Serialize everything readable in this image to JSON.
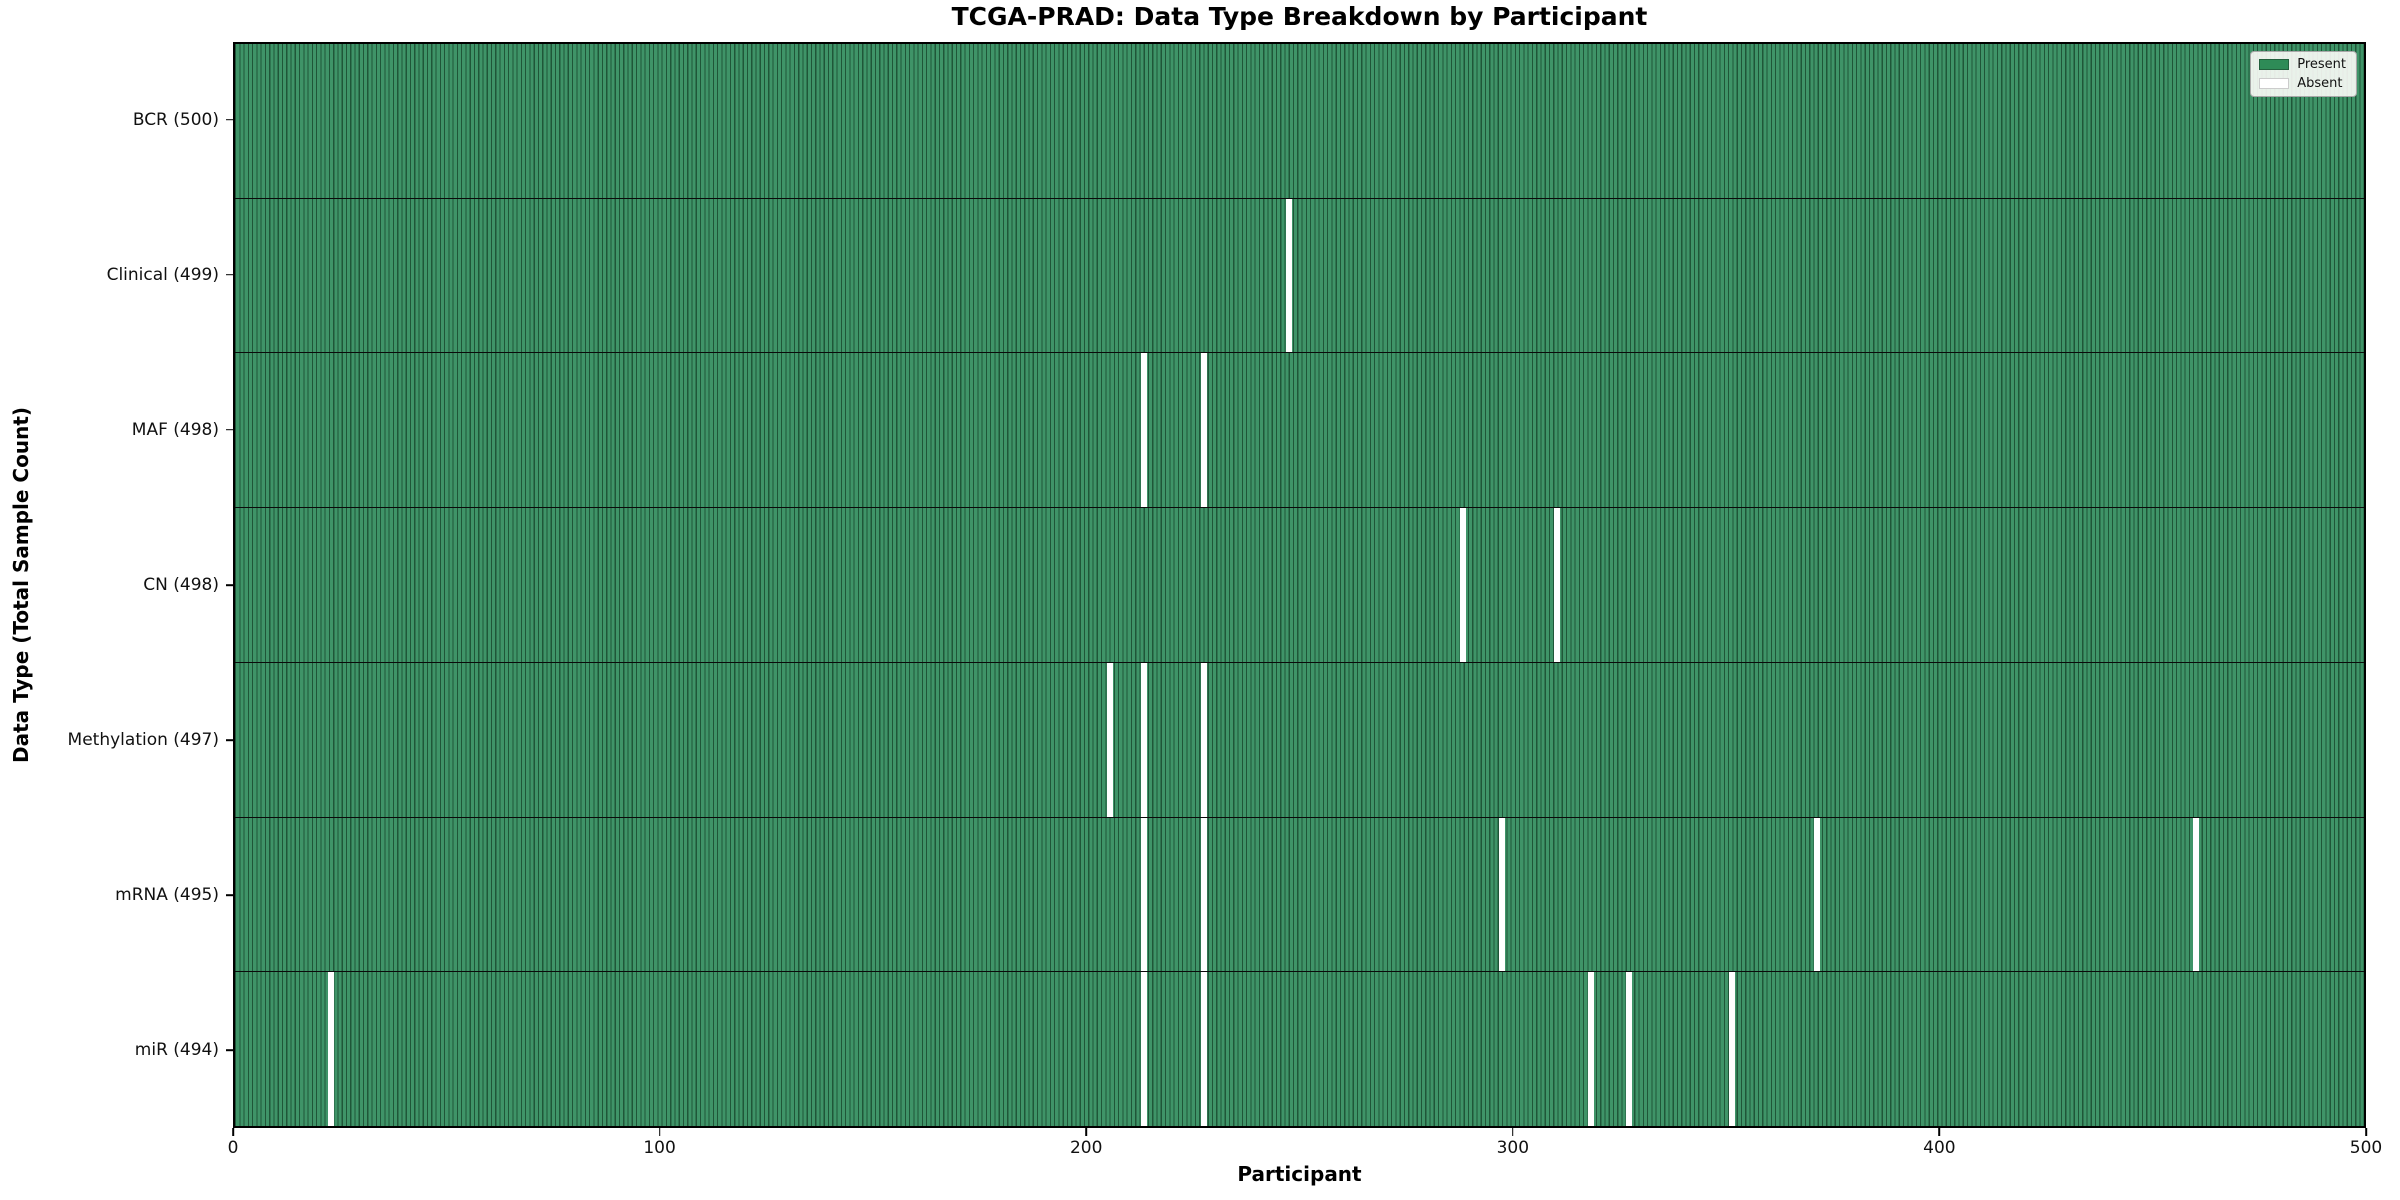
{
  "title": "TCGA-PRAD: Data Type Breakdown by Participant",
  "xlabel": "Participant",
  "ylabel": "Data Type (Total Sample Count)",
  "legend": {
    "present_label": "Present",
    "absent_label": "Absent"
  },
  "colors": {
    "present": "#2E8B57",
    "bar_fill": "#3F9468",
    "bar_edge": "#1F5638",
    "absent": "#FFFFFF",
    "spine": "#000000"
  },
  "chart_data": {
    "type": "heatmap",
    "title": "TCGA-PRAD: Data Type Breakdown by Participant",
    "xlabel": "Participant",
    "ylabel": "Data Type (Total Sample Count)",
    "legend": [
      "Present",
      "Absent"
    ],
    "legend_position": "upper right",
    "x_range": [
      0,
      500
    ],
    "n_participants": 500,
    "x_ticks": [
      0,
      100,
      200,
      300,
      400,
      500
    ],
    "grid": false,
    "rows": [
      {
        "name": "BCR",
        "label": "BCR (500)",
        "total": 500,
        "absent_participants": []
      },
      {
        "name": "Clinical",
        "label": "Clinical (499)",
        "total": 499,
        "absent_participants": [
          247
        ]
      },
      {
        "name": "MAF",
        "label": "MAF (498)",
        "total": 498,
        "absent_participants": [
          213,
          227
        ]
      },
      {
        "name": "CN",
        "label": "CN (498)",
        "total": 498,
        "absent_participants": [
          288,
          310
        ]
      },
      {
        "name": "Methylation",
        "label": "Methylation (497)",
        "total": 497,
        "absent_participants": [
          205,
          213,
          227
        ]
      },
      {
        "name": "mRNA",
        "label": "mRNA (495)",
        "total": 495,
        "absent_participants": [
          213,
          227,
          297,
          371,
          460
        ]
      },
      {
        "name": "miR",
        "label": "miR (494)",
        "total": 494,
        "absent_participants": [
          22,
          213,
          227,
          318,
          327,
          351
        ]
      }
    ]
  }
}
